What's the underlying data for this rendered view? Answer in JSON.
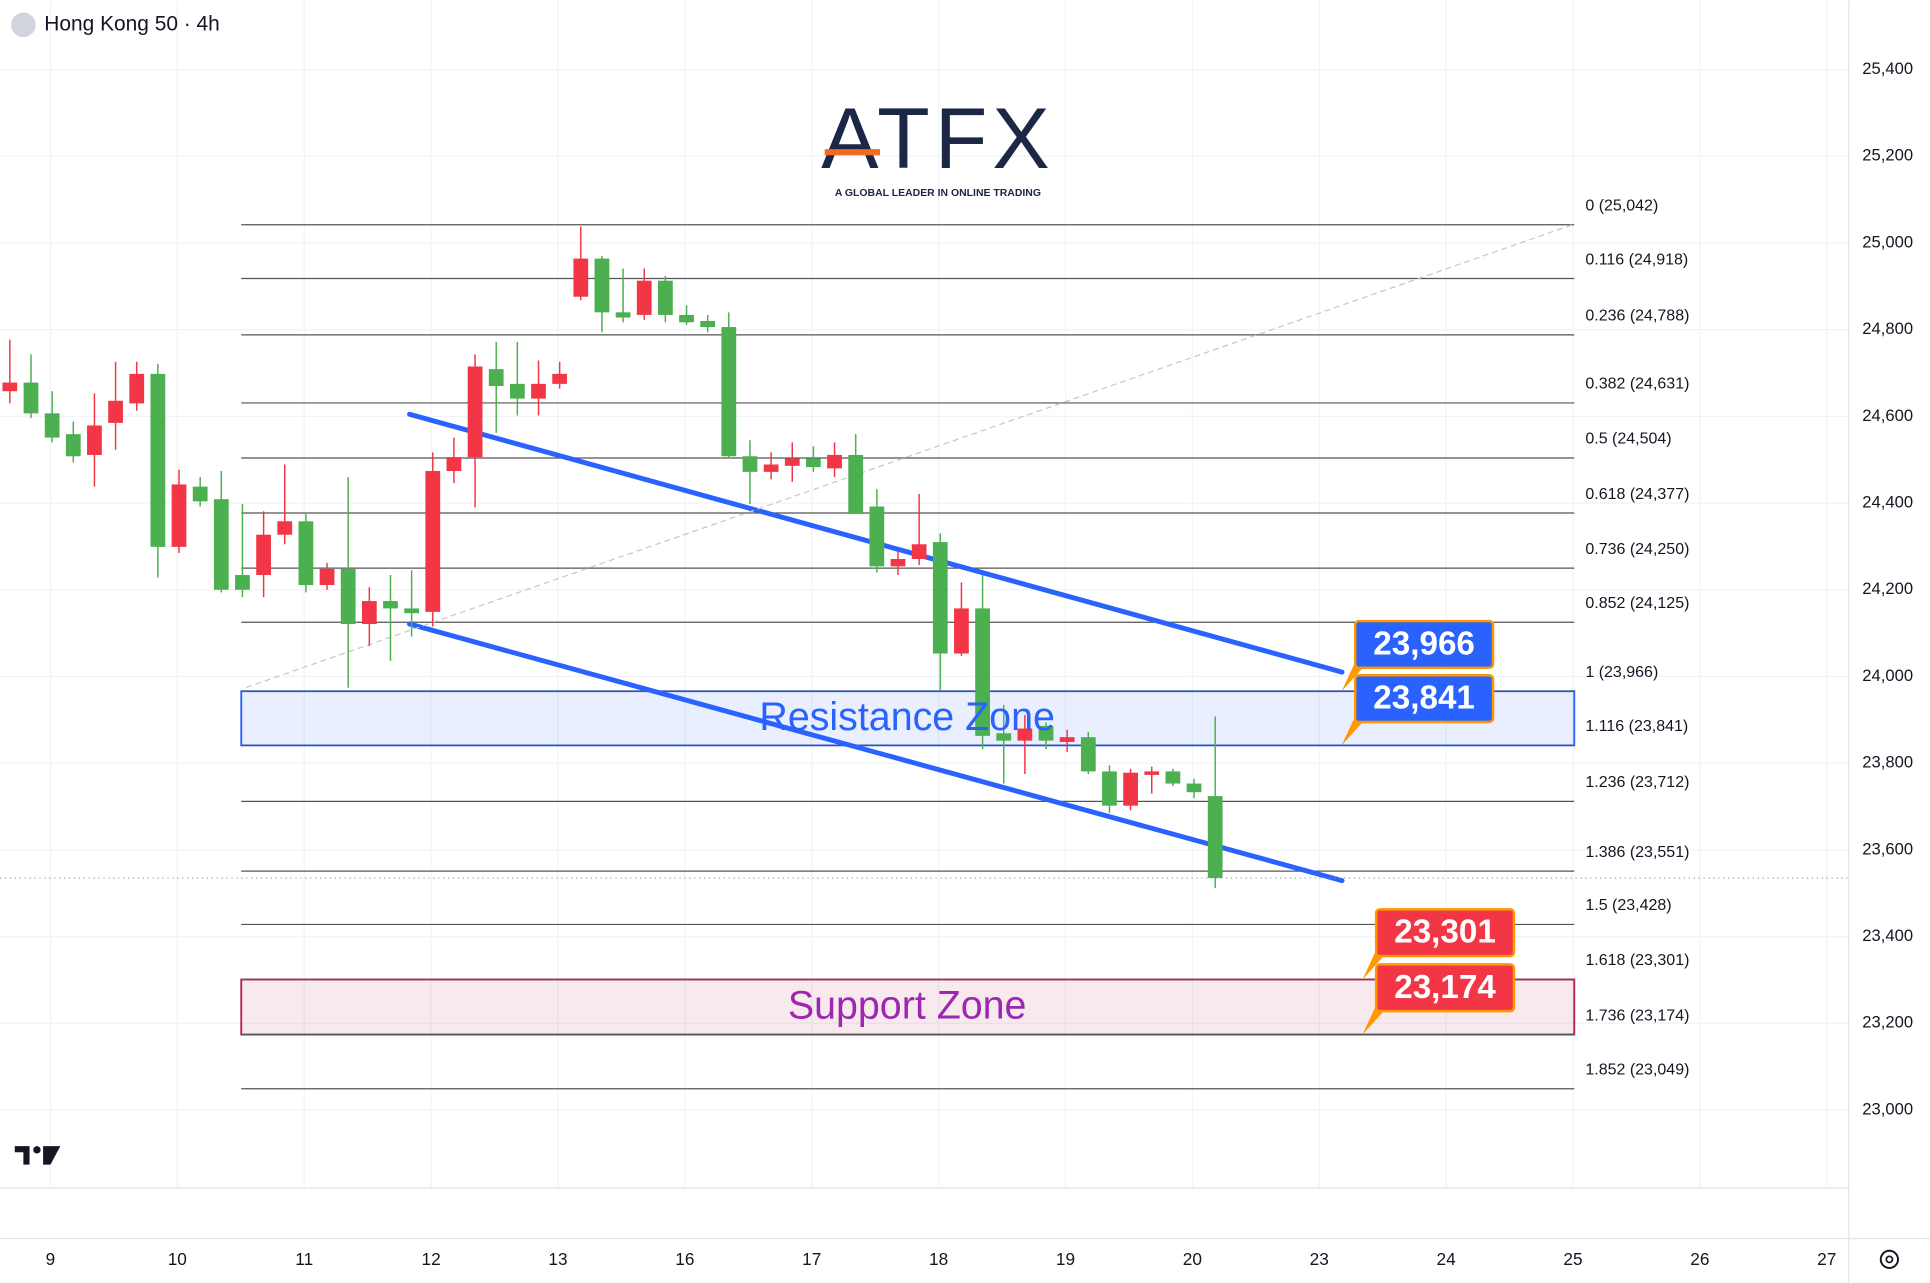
{
  "chart_data": {
    "type": "candlestick",
    "title": "Hong Kong 50 · 4h",
    "logo": {
      "text": "ATFX",
      "tagline": "A GLOBAL LEADER IN ONLINE TRADING"
    },
    "up_color": "#f23645",
    "down_color": "#4caf50",
    "grid": true,
    "xticks": [
      "9",
      "10",
      "11",
      "12",
      "13",
      "16",
      "17",
      "18",
      "19",
      "20",
      "23",
      "24",
      "25",
      "26",
      "27"
    ],
    "ylim": [
      22820,
      25560
    ],
    "yticks": [
      {
        "value": 23000,
        "label": "23,000"
      },
      {
        "value": 23200,
        "label": "23,200"
      },
      {
        "value": 23400,
        "label": "23,400"
      },
      {
        "value": 23600,
        "label": "23,600"
      },
      {
        "value": 23800,
        "label": "23,800"
      },
      {
        "value": 24000,
        "label": "24,000"
      },
      {
        "value": 24200,
        "label": "24,200"
      },
      {
        "value": 24400,
        "label": "24,400"
      },
      {
        "value": 24600,
        "label": "24,600"
      },
      {
        "value": 24800,
        "label": "24,800"
      },
      {
        "value": 25000,
        "label": "25,000"
      },
      {
        "value": 25200,
        "label": "25,200"
      },
      {
        "value": 25400,
        "label": "25,400"
      }
    ],
    "candles": {
      "open": [
        24658,
        24678,
        24607,
        24559,
        24511,
        24585,
        24630,
        24698,
        24299,
        24438,
        24409,
        24234,
        24234,
        24327,
        24358,
        24211,
        24248,
        24121,
        24174,
        24157,
        24149,
        24474,
        24506,
        24709,
        24675,
        24641,
        24675,
        24876,
        24964,
        24840,
        24834,
        24913,
        24834,
        24820,
        24806,
        24508,
        24472,
        24486,
        24503,
        24480,
        24511,
        24392,
        24254,
        24271,
        24310,
        24053,
        24157,
        23869,
        23852,
        23886,
        23849,
        23860,
        23781,
        23702,
        23773,
        23781,
        23753,
        23724
      ],
      "high": [
        24777,
        24743,
        24658,
        24588,
        24653,
        24726,
        24726,
        24721,
        24477,
        24460,
        24474,
        24398,
        24381,
        24489,
        24375,
        24262,
        24460,
        24206,
        24234,
        24245,
        24517,
        24551,
        24743,
        24772,
        24772,
        24729,
        24726,
        25038,
        24970,
        24941,
        24941,
        24924,
        24856,
        24834,
        24840,
        24545,
        24517,
        24540,
        24531,
        24540,
        24559,
        24432,
        24290,
        24421,
        24330,
        24217,
        24234,
        23934,
        23911,
        23894,
        23877,
        23872,
        23795,
        23787,
        23792,
        23787,
        23764,
        23908
      ],
      "low": [
        24630,
        24596,
        24540,
        24494,
        24438,
        24523,
        24613,
        24228,
        24285,
        24392,
        24194,
        24183,
        24183,
        24305,
        24194,
        24200,
        23974,
        24070,
        24036,
        24092,
        24115,
        24446,
        24390,
        24562,
        24602,
        24602,
        24664,
        24868,
        24794,
        24817,
        24823,
        24817,
        24811,
        24794,
        24503,
        24398,
        24455,
        24449,
        24472,
        24460,
        24375,
        24240,
        24234,
        24257,
        23968,
        24047,
        23832,
        23753,
        23775,
        23832,
        23826,
        23775,
        23685,
        23691,
        23730,
        23747,
        23719,
        23512
      ],
      "close": [
        24678,
        24607,
        24551,
        24508,
        24579,
        24636,
        24698,
        24299,
        24443,
        24404,
        24200,
        24200,
        24327,
        24358,
        24211,
        24248,
        24121,
        24174,
        24157,
        24146,
        24474,
        24506,
        24715,
        24670,
        24641,
        24675,
        24698,
        24964,
        24840,
        24828,
        24913,
        24834,
        24817,
        24806,
        24508,
        24472,
        24489,
        24503,
        24483,
        24511,
        24375,
        24254,
        24271,
        24305,
        24053,
        24157,
        23863,
        23852,
        23880,
        23852,
        23860,
        23781,
        23702,
        23778,
        23781,
        23753,
        23733,
        23535
      ]
    },
    "fib_levels": [
      {
        "value": 25042,
        "label": "0 (25,042)"
      },
      {
        "value": 24918,
        "label": "0.116 (24,918)"
      },
      {
        "value": 24788,
        "label": "0.236 (24,788)"
      },
      {
        "value": 24631,
        "label": "0.382 (24,631)"
      },
      {
        "value": 24504,
        "label": "0.5 (24,504)"
      },
      {
        "value": 24377,
        "label": "0.618 (24,377)"
      },
      {
        "value": 24250,
        "label": "0.736 (24,250)"
      },
      {
        "value": 24125,
        "label": "0.852 (24,125)"
      },
      {
        "value": 23966,
        "label": "1 (23,966)"
      },
      {
        "value": 23841,
        "label": "1.116 (23,841)"
      },
      {
        "value": 23712,
        "label": "1.236 (23,712)"
      },
      {
        "value": 23551,
        "label": "1.386 (23,551)"
      },
      {
        "value": 23428,
        "label": "1.5 (23,428)"
      },
      {
        "value": 23301,
        "label": "1.618 (23,301)"
      },
      {
        "value": 23174,
        "label": "1.736 (23,174)"
      },
      {
        "value": 23049,
        "label": "1.852 (23,049)"
      }
    ],
    "zones": [
      {
        "label": "Resistance Zone",
        "range": [
          23841,
          23966
        ],
        "color": "#2962ff",
        "text_color": "#2962ff"
      },
      {
        "label": "Support Zone",
        "range": [
          23174,
          23301
        ],
        "color": "#b2234f",
        "text_color": "#9c27b0"
      }
    ],
    "price_tags": [
      {
        "value": 23966,
        "label": "23,966",
        "color": "#2962ff"
      },
      {
        "value": 23841,
        "label": "23,841",
        "color": "#2962ff"
      },
      {
        "value": 23301,
        "label": "23,301",
        "color": "#f23645"
      },
      {
        "value": 23174,
        "label": "23,174",
        "color": "#f23645"
      }
    ],
    "trendlines": [
      {
        "x": [
          18.9,
          63
        ],
        "y": [
          24605,
          24010
        ],
        "color": "#2962ff",
        "style": "solid"
      },
      {
        "x": [
          18.9,
          63
        ],
        "y": [
          24121,
          23529
        ],
        "color": "#2962ff",
        "style": "solid"
      },
      {
        "x": [
          11.2,
          73.9
        ],
        "y": [
          23975,
          25042
        ],
        "color": "#c8c8c8",
        "style": "dashed"
      }
    ]
  }
}
